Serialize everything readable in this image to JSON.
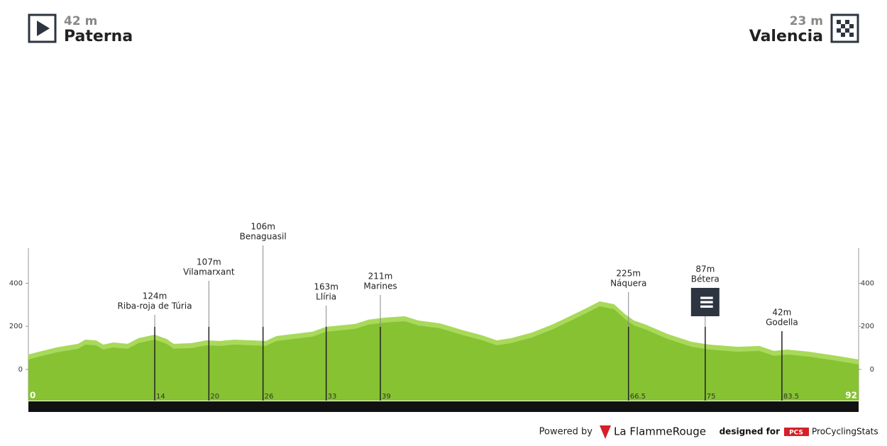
{
  "start": {
    "elevation": "42 m",
    "name": "Paterna"
  },
  "finish": {
    "elevation": "23 m",
    "name": "Valencia"
  },
  "chart_data": {
    "type": "area",
    "x": [
      0,
      1.2,
      3.1,
      5.5,
      6.3,
      7.5,
      8.3,
      9.4,
      11,
      12.2,
      14,
      15.3,
      16.1,
      18.1,
      19.7,
      21.2,
      22.8,
      24.8,
      26.3,
      27.5,
      31.5,
      33,
      36.2,
      37.7,
      39.7,
      41.7,
      43.2,
      45.6,
      48,
      50.3,
      51.9,
      53.5,
      55.8,
      58.2,
      60.5,
      62.1,
      63.3,
      64.9,
      66.1,
      67.1,
      68.4,
      70.8,
      73.5,
      75.5,
      78.6,
      81,
      82.6,
      84.1,
      86.5,
      89.6,
      92
    ],
    "values": [
      46,
      59,
      79,
      96,
      115,
      112,
      92,
      102,
      96,
      122,
      138,
      119,
      96,
      99,
      112,
      109,
      115,
      112,
      109,
      132,
      152,
      175,
      188,
      208,
      218,
      224,
      204,
      191,
      161,
      135,
      112,
      122,
      148,
      188,
      234,
      267,
      293,
      280,
      234,
      204,
      185,
      142,
      105,
      92,
      82,
      86,
      63,
      69,
      59,
      40,
      23
    ],
    "color": "#86c232",
    "highlight_color": "#a8d95a",
    "xlim": [
      0,
      92
    ],
    "xticks": [
      0,
      92
    ],
    "ylim": [
      -145,
      563
    ],
    "yticks": [
      0,
      200,
      400
    ],
    "waypoints": [
      {
        "km": 14,
        "km_label": "14",
        "elevation": "124m",
        "name": "Riba-roja de Túria"
      },
      {
        "km": 20,
        "km_label": "20",
        "elevation": "107m",
        "name": "Vilamarxant"
      },
      {
        "km": 26,
        "km_label": "26",
        "elevation": "106m",
        "name": "Benaguasil"
      },
      {
        "km": 33,
        "km_label": "33",
        "elevation": "163m",
        "name": "Llíria"
      },
      {
        "km": 39,
        "km_label": "39",
        "elevation": "211m",
        "name": "Marines"
      },
      {
        "km": 66.5,
        "km_label": "66.5",
        "elevation": "225m",
        "name": "Náquera"
      },
      {
        "km": 75,
        "km_label": "75",
        "elevation": "87m",
        "name": "Bétera"
      },
      {
        "km": 83.5,
        "km_label": "83.5",
        "elevation": "42m",
        "name": "Godella"
      }
    ]
  },
  "footer": {
    "powered": "Powered by",
    "brand": "La FlammeRouge",
    "designed": "designed for",
    "pcs": "PCS",
    "site": "ProCyclingStats"
  }
}
